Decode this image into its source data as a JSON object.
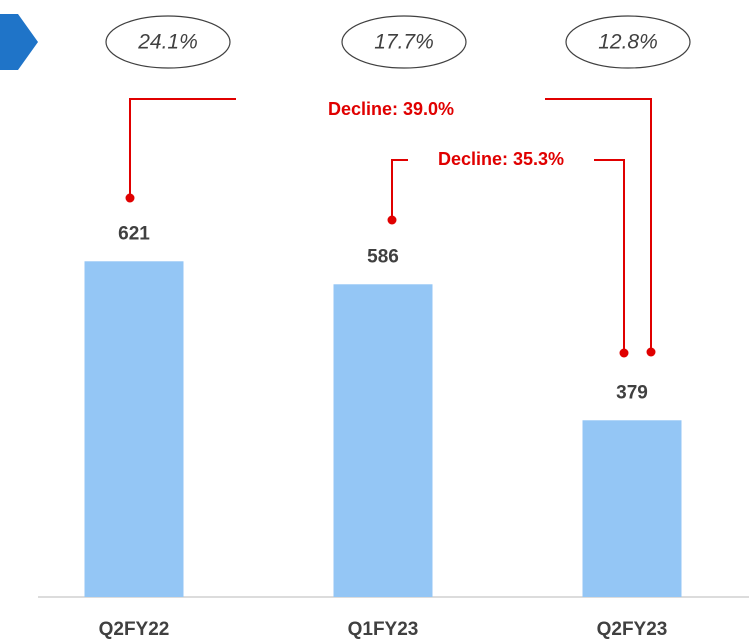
{
  "chart_data": {
    "type": "bar",
    "categories": [
      "Q2FY22",
      "Q1FY23",
      "Q2FY23"
    ],
    "values": [
      621,
      586,
      379
    ],
    "color": "#94c6f5",
    "ylim": [
      110,
      900
    ],
    "growth_labels": [
      "24.1%",
      "17.7%",
      "12.8%"
    ],
    "annotations": [
      "Decline: 39.0%",
      "Decline: 35.3%"
    ]
  }
}
